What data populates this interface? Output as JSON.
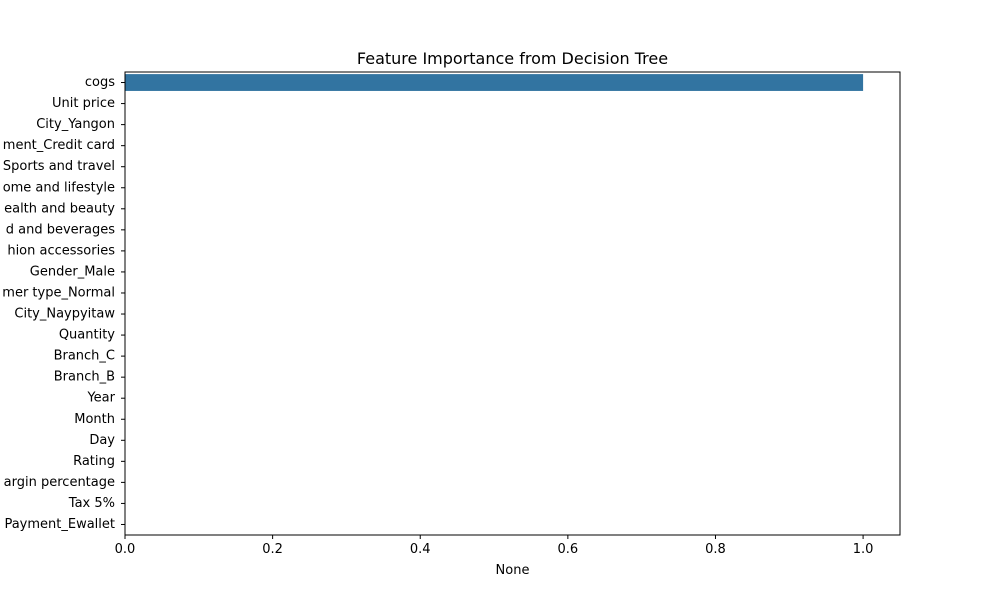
{
  "chart_data": {
    "type": "bar",
    "orientation": "horizontal",
    "title": "Feature Importance from Decision Tree",
    "xlabel": "None",
    "ylabel": "",
    "xlim": [
      0.0,
      1.05
    ],
    "xticks": [
      0.0,
      0.2,
      0.4,
      0.6,
      0.8,
      1.0
    ],
    "xtick_labels": [
      "0.0",
      "0.2",
      "0.4",
      "0.6",
      "0.8",
      "1.0"
    ],
    "grid": false,
    "bar_color": "#3274a1",
    "categories": [
      "cogs",
      "Unit price",
      "City_Yangon",
      "ment_Credit card",
      "Sports and travel",
      "ome and lifestyle",
      "ealth and beauty",
      "d and beverages",
      "hion accessories",
      "Gender_Male",
      "mer type_Normal",
      "City_Naypyitaw",
      "Quantity",
      "Branch_C",
      "Branch_B",
      "Year",
      "Month",
      "Day",
      "Rating",
      "argin percentage",
      "Tax 5%",
      "Payment_Ewallet"
    ],
    "values": [
      1.0,
      0,
      0,
      0,
      0,
      0,
      0,
      0,
      0,
      0,
      0,
      0,
      0,
      0,
      0,
      0,
      0,
      0,
      0,
      0,
      0,
      0
    ]
  }
}
